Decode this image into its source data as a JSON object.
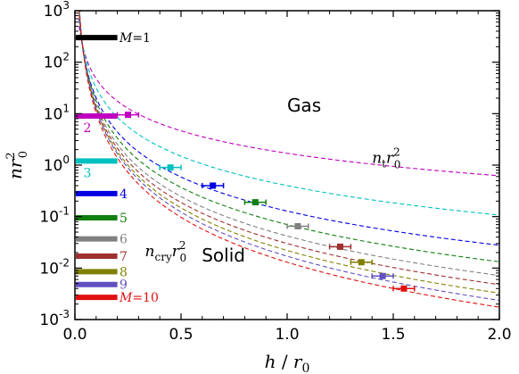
{
  "chart_data": {
    "type": "line",
    "xlabel": "h / r0",
    "ylabel": "n r0^2",
    "xlim": [
      0,
      2.0
    ],
    "ylim": [
      0.001,
      1000
    ],
    "yscale": "log",
    "x_ticks": [
      {
        "value": 0.0,
        "label": "0.0"
      },
      {
        "value": 0.5,
        "label": "0.5"
      },
      {
        "value": 1.0,
        "label": "1.0"
      },
      {
        "value": 1.5,
        "label": "1.5"
      },
      {
        "value": 2.0,
        "label": "2.0"
      }
    ],
    "y_ticks": [
      {
        "value": 0.001,
        "base": "10",
        "exp": "-3"
      },
      {
        "value": 0.01,
        "base": "10",
        "exp": "-2"
      },
      {
        "value": 0.1,
        "base": "10",
        "exp": "-1"
      },
      {
        "value": 1,
        "base": "10",
        "exp": "0"
      },
      {
        "value": 10,
        "base": "10",
        "exp": "1"
      },
      {
        "value": 100,
        "base": "10",
        "exp": "2"
      },
      {
        "value": 1000,
        "base": "10",
        "exp": "3"
      }
    ],
    "region_labels": {
      "gas": "Gas",
      "solid": "Solid"
    },
    "curve_labels": {
      "nt": {
        "base": "n",
        "sub": "t",
        "mid": "r",
        "sup": "2",
        "sub2": "0"
      },
      "ncry": {
        "base": "n",
        "sub": "cry",
        "mid": "r",
        "sup": "2",
        "sub2": "0"
      }
    },
    "series": [
      {
        "M": 1,
        "label": "M = 1",
        "color": "#000000",
        "bar_y": 300,
        "curve": null,
        "point": null
      },
      {
        "M": 2,
        "label": "2",
        "color": "#c000c0",
        "bar_y": 9.0,
        "curve": {
          "a": 1.7,
          "b": 1.45
        },
        "point": {
          "x": 0.25,
          "y": 9.5,
          "xerr": 0.05
        }
      },
      {
        "M": 3,
        "label": "3",
        "color": "#00c0c0",
        "bar_y": 1.2,
        "curve": {
          "a": 0.4,
          "b": 1.9
        },
        "point": {
          "x": 0.45,
          "y": 0.9,
          "xerr": 0.05
        }
      },
      {
        "M": 4,
        "label": "4",
        "color": "#0000e0",
        "bar_y": 0.28,
        "curve": {
          "a": 0.128,
          "b": 2.2
        },
        "point": {
          "x": 0.65,
          "y": 0.4,
          "xerr": 0.05
        }
      },
      {
        "M": 5,
        "label": "5",
        "color": "#108010",
        "bar_y": 0.095,
        "curve": {
          "a": 0.07,
          "b": 2.4
        },
        "point": {
          "x": 0.85,
          "y": 0.19,
          "xerr": 0.05
        }
      },
      {
        "M": 6,
        "label": "6",
        "color": "#808080",
        "bar_y": 0.037,
        "curve": {
          "a": 0.042,
          "b": 2.55
        },
        "point": {
          "x": 1.05,
          "y": 0.065,
          "xerr": 0.05
        }
      },
      {
        "M": 7,
        "label": "7",
        "color": "#a03030",
        "bar_y": 0.017,
        "curve": {
          "a": 0.03,
          "b": 2.65
        },
        "point": {
          "x": 1.25,
          "y": 0.026,
          "xerr": 0.05
        }
      },
      {
        "M": 8,
        "label": "8",
        "color": "#808000",
        "bar_y": 0.0085,
        "curve": {
          "a": 0.022,
          "b": 2.75
        },
        "point": {
          "x": 1.35,
          "y": 0.013,
          "xerr": 0.05
        }
      },
      {
        "M": 9,
        "label": "9",
        "color": "#6050c0",
        "bar_y": 0.0048,
        "curve": {
          "a": 0.017,
          "b": 2.85
        },
        "point": {
          "x": 1.45,
          "y": 0.007,
          "xerr": 0.05
        }
      },
      {
        "M": 10,
        "label": "M = 10",
        "color": "#e01010",
        "bar_y": 0.0027,
        "curve": {
          "a": 0.013,
          "b": 2.9
        },
        "point": {
          "x": 1.55,
          "y": 0.004,
          "xerr": 0.05
        }
      }
    ],
    "bar_x_range": [
      0.0,
      0.2
    ]
  }
}
